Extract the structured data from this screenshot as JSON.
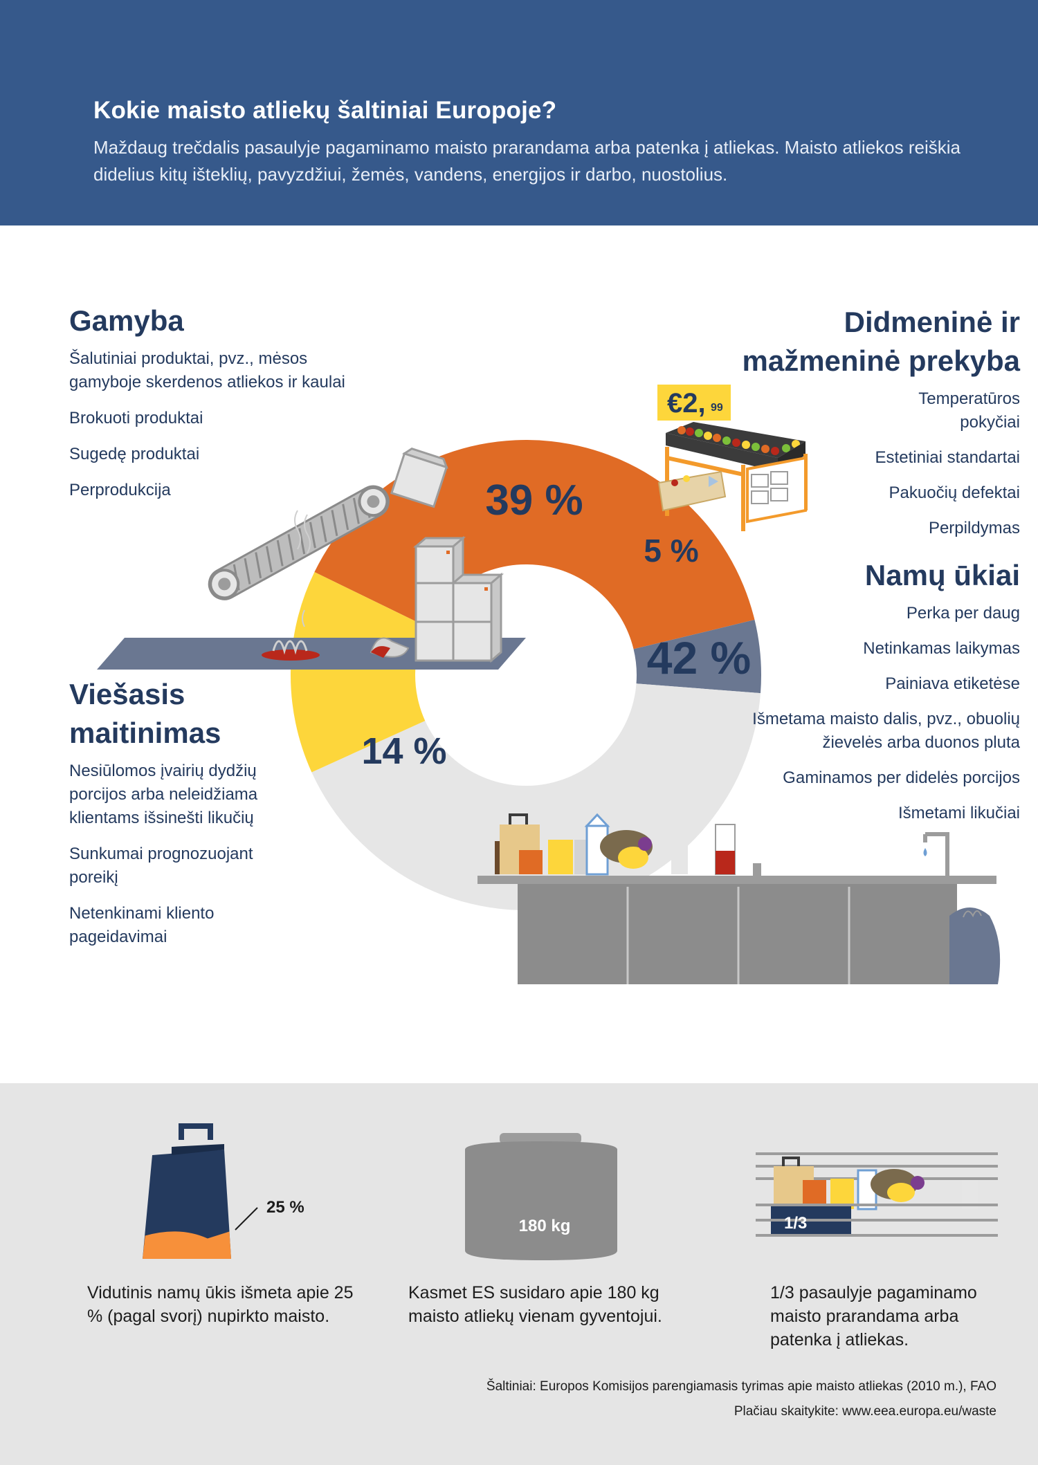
{
  "header": {
    "title": "Kokie maisto atliekų šaltiniai Europoje?",
    "subtitle": "Maždaug trečdalis pasaulyje pagaminamo maisto prarandama arba patenka į atliekas. Maisto atliekos reiškia didelius kitų išteklių, pavyzdžiui, žemės, vandens, energijos ir darbo, nuostolius."
  },
  "chart_data": {
    "type": "pie",
    "donut": true,
    "slices": [
      {
        "label": "39 %",
        "value": 39,
        "color": "#e06b25",
        "category": "Gamyba"
      },
      {
        "label": "5 %",
        "value": 5,
        "color": "#6a7791",
        "category": "Didmeninė ir mažmeninė prekyba"
      },
      {
        "label": "42 %",
        "value": 42,
        "color": "#e6e6e6",
        "category": "Namų ūkiai"
      },
      {
        "label": "14 %",
        "value": 14,
        "color": "#fdd63b",
        "category": "Viešasis maitinimas"
      }
    ]
  },
  "categories": {
    "gamyba": {
      "title": "Gamyba",
      "items": [
        "Šalutiniai produktai, pvz., mėsos gamyboje skerdenos atliekos ir kaulai",
        "Brokuoti produktai",
        "Sugedę produktai",
        "Perprodukcija"
      ]
    },
    "prekyba": {
      "title_line1": "Didmeninė ir",
      "title_line2": "mažmeninė prekyba",
      "items": [
        "Temperatūros pokyčiai",
        "Estetiniai standartai",
        "Pakuočių defektai",
        "Perpildymas"
      ]
    },
    "namu": {
      "title": "Namų ūkiai",
      "items": [
        "Perka per daug",
        "Netinkamas laikymas",
        "Painiava etiketėse",
        "Išmetama maisto dalis, pvz., obuolių žievelės arba duonos pluta",
        "Gaminamos per didelės porcijos",
        "Išmetami likučiai"
      ]
    },
    "viesasis": {
      "title_line1": "Viešasis",
      "title_line2": "maitinimas",
      "items": [
        "Nesiūlomos įvairių dydžių porcijos arba neleidžiama klientams išsinešti likučių",
        "Sunkumai prognozuojant poreikį",
        "Netenkinami kliento pageidavimai"
      ]
    }
  },
  "price_tag": {
    "euro": "€2,",
    "cents": "99"
  },
  "stats": {
    "bag": {
      "label": "25 %",
      "fill_fraction": 0.25,
      "text": "Vidutinis namų ūkis išmeta apie 25 % (pagal svorį) nupirkto maisto."
    },
    "bin": {
      "label": "180 kg",
      "text": "Kasmet ES susidaro apie 180 kg maisto atliekų vienam gyventojui."
    },
    "share": {
      "label": "1/3",
      "text": "1/3 pasaulyje pagaminamo maisto prarandama arba patenka į atliekas."
    }
  },
  "footer": {
    "sources": "Šaltiniai: Europos Komisijos parengiamasis tyrimas apie maisto atliekas (2010 m.), FAO",
    "more": "Plačiau skaitykite: www.eea.europa.eu/waste"
  },
  "colors": {
    "header_bg": "#36598b",
    "orange": "#e06b25",
    "slate": "#6a7791",
    "grey": "#e6e6e6",
    "yellow": "#fdd63b",
    "navy_text": "#243a5e",
    "bottom_bg": "#e5e5e5"
  }
}
